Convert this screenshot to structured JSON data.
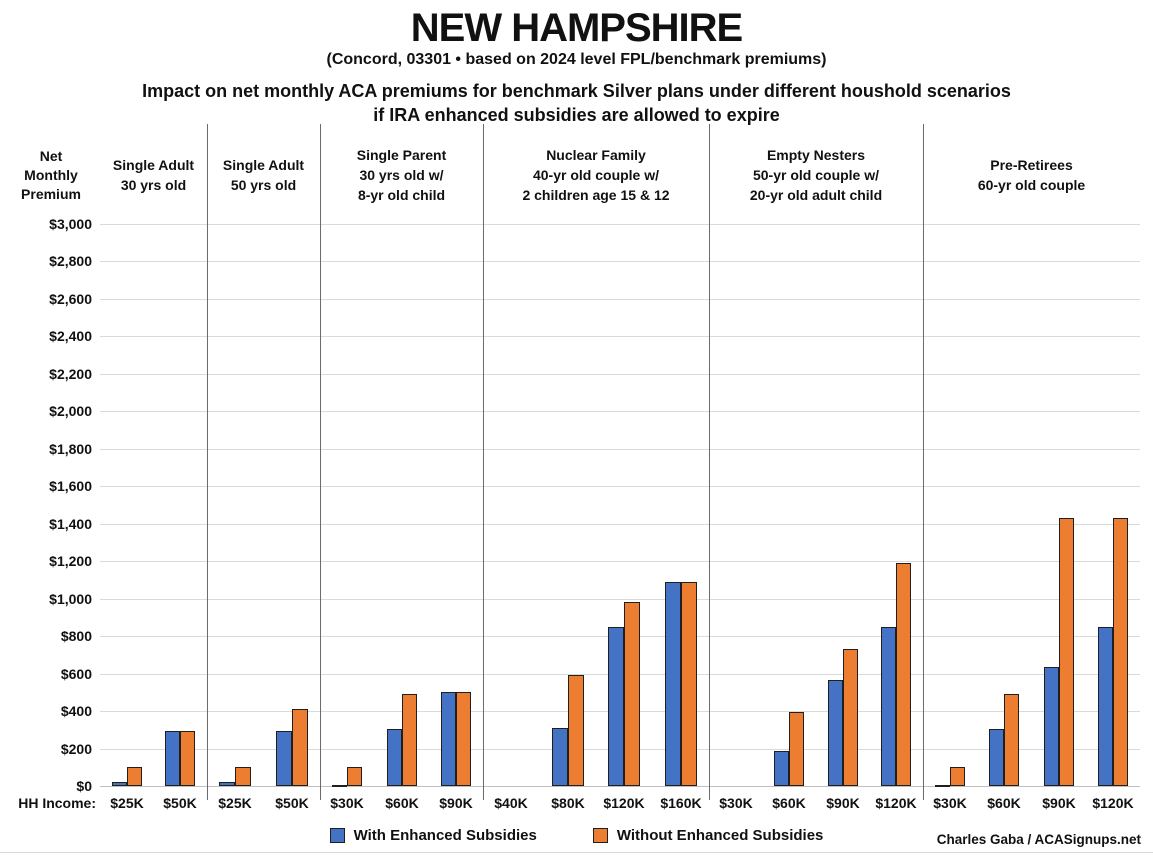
{
  "title": "NEW HAMPSHIRE",
  "subtitle": "(Concord, 03301 • based on 2024 level FPL/benchmark premiums)",
  "heading": {
    "line1": "Impact on net monthly ACA premiums for benchmark Silver plans under different houshold scenarios",
    "line2": "if IRA enhanced subsidies are allowed to expire"
  },
  "y_axis_title": [
    "Net",
    "Monthly",
    "Premium"
  ],
  "x_axis_prefix": "HH Income:",
  "credit": "Charles Gaba / ACASignups.net",
  "legend": [
    {
      "label": "With Enhanced Subsidies",
      "color": "#4472C4"
    },
    {
      "label": "Without Enhanced Subsidies",
      "color": "#ED7D31"
    }
  ],
  "chart_data": {
    "type": "bar",
    "title": "Impact on net monthly ACA premiums for benchmark Silver plans under different houshold scenarios if IRA enhanced subsidies are allowed to expire",
    "state": "NEW HAMPSHIRE",
    "location_note": "(Concord, 03301 • based on 2024 level FPL/benchmark premiums)",
    "ylabel": "Net Monthly Premium",
    "xlabel": "HH Income:",
    "ylim": [
      0,
      3000
    ],
    "ytick_step": 200,
    "ytick_labels": [
      "$0",
      "$200",
      "$400",
      "$600",
      "$800",
      "$1,000",
      "$1,200",
      "$1,400",
      "$1,600",
      "$1,800",
      "$2,000",
      "$2,200",
      "$2,400",
      "$2,600",
      "$2,800",
      "$3,000"
    ],
    "grid": true,
    "legend_position": "bottom",
    "series_names": [
      "With Enhanced Subsidies",
      "Without Enhanced Subsidies"
    ],
    "colors": {
      "with_subsidies": "#4472C4",
      "without_subsidies": "#ED7D31",
      "bar_outline": "#1F1F1F"
    },
    "groups": [
      {
        "header_lines": [
          "Single Adult",
          "30 yrs old"
        ],
        "categories": [
          "$25K",
          "$50K"
        ],
        "series": [
          {
            "name": "With Enhanced Subsidies",
            "values": [
              20,
              295
            ]
          },
          {
            "name": "Without Enhanced Subsidies",
            "values": [
              100,
              295
            ]
          }
        ]
      },
      {
        "header_lines": [
          "Single Adult",
          "50 yrs old"
        ],
        "categories": [
          "$25K",
          "$50K"
        ],
        "series": [
          {
            "name": "With Enhanced Subsidies",
            "values": [
              20,
              295
            ]
          },
          {
            "name": "Without Enhanced Subsidies",
            "values": [
              100,
              410
            ]
          }
        ]
      },
      {
        "header_lines": [
          "Single Parent",
          "30 yrs old w/",
          "8-yr old child"
        ],
        "categories": [
          "$30K",
          "$60K",
          "$90K"
        ],
        "series": [
          {
            "name": "With Enhanced Subsidies",
            "values": [
              5,
              305,
              500
            ]
          },
          {
            "name": "Without Enhanced Subsidies",
            "values": [
              100,
              490,
              500
            ]
          }
        ]
      },
      {
        "header_lines": [
          "Nuclear Family",
          "40-yr old couple w/",
          "2 children age 15 & 12"
        ],
        "categories": [
          "$40K",
          "$80K",
          "$120K",
          "$160K"
        ],
        "series": [
          {
            "name": "With Enhanced Subsidies",
            "values": [
              0,
              310,
              850,
              1090
            ]
          },
          {
            "name": "Without Enhanced Subsidies",
            "values": [
              0,
              590,
              980,
              1090
            ]
          }
        ]
      },
      {
        "header_lines": [
          "Empty Nesters",
          "50-yr old couple w/",
          "20-yr old adult child"
        ],
        "categories": [
          "$30K",
          "$60K",
          "$90K",
          "$120K"
        ],
        "series": [
          {
            "name": "With Enhanced Subsidies",
            "values": [
              0,
              185,
              565,
              850
            ]
          },
          {
            "name": "Without Enhanced Subsidies",
            "values": [
              0,
              395,
              730,
              1190
            ]
          }
        ]
      },
      {
        "header_lines": [
          "Pre-Retirees",
          "60-yr old couple"
        ],
        "categories": [
          "$30K",
          "$60K",
          "$90K",
          "$120K"
        ],
        "series": [
          {
            "name": "With Enhanced Subsidies",
            "values": [
              5,
              305,
              635,
              850
            ]
          },
          {
            "name": "Without Enhanced Subsidies",
            "values": [
              100,
              490,
              1430,
              1430
            ]
          }
        ]
      }
    ]
  }
}
